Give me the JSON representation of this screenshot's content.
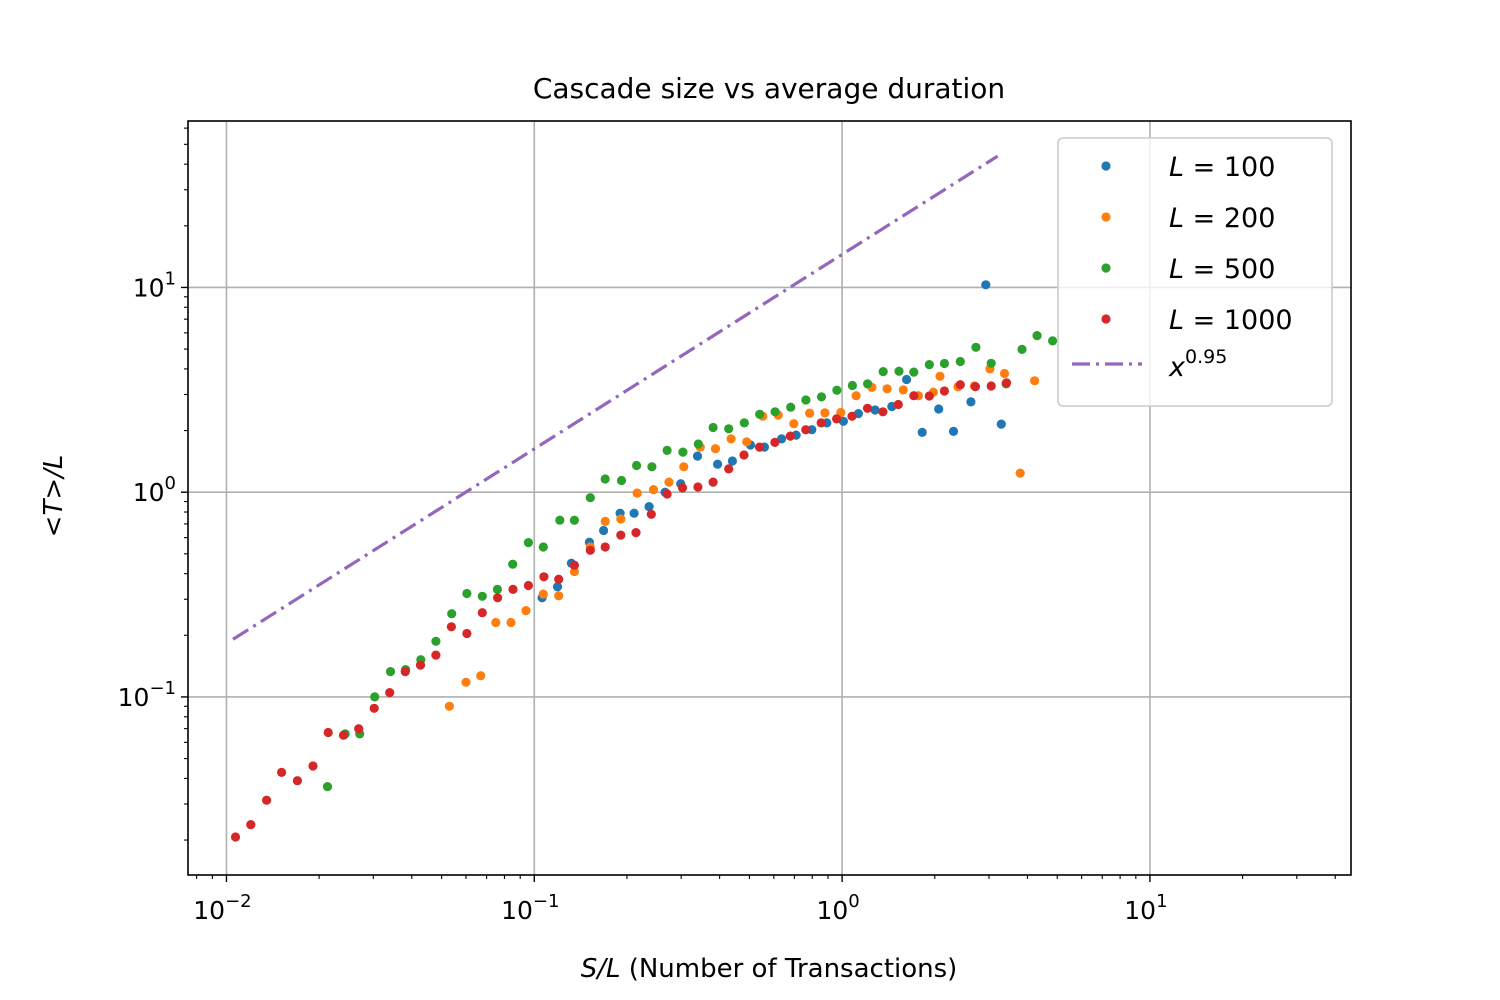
{
  "chart_data": {
    "type": "scatter",
    "title": "Cascade size vs average duration",
    "xlabel_var": "S/L",
    "xlabel_rest": " (Number of Transactions)",
    "ylabel": "<T>/L",
    "xscale": "log",
    "yscale": "log",
    "xlim": [
      0.0075,
      45
    ],
    "ylim": [
      0.0135,
      65
    ],
    "grid": true,
    "legend_position": "upper right",
    "x_ticks": [
      {
        "value": 0.01,
        "base": "10",
        "exp": "−2"
      },
      {
        "value": 0.1,
        "base": "10",
        "exp": "−1"
      },
      {
        "value": 1,
        "base": "10",
        "exp": "0"
      },
      {
        "value": 10,
        "base": "10",
        "exp": "1"
      }
    ],
    "y_ticks": [
      {
        "value": 0.1,
        "base": "10",
        "exp": "−1"
      },
      {
        "value": 1,
        "base": "10",
        "exp": "0"
      },
      {
        "value": 10,
        "base": "10",
        "exp": "1"
      }
    ],
    "series": [
      {
        "name": "L = 100",
        "label_var": "L",
        "label_num": " = 100",
        "color": "#1f77b4",
        "marker": "dot",
        "points": [
          [
            0.106,
            0.305
          ],
          [
            0.119,
            0.345
          ],
          [
            0.132,
            0.45
          ],
          [
            0.151,
            0.57
          ],
          [
            0.168,
            0.65
          ],
          [
            0.19,
            0.79
          ],
          [
            0.211,
            0.79
          ],
          [
            0.236,
            0.85
          ],
          [
            0.266,
            1.0
          ],
          [
            0.299,
            1.1
          ],
          [
            0.339,
            1.5
          ],
          [
            0.394,
            1.37
          ],
          [
            0.44,
            1.42
          ],
          [
            0.504,
            1.7
          ],
          [
            0.559,
            1.66
          ],
          [
            0.636,
            1.82
          ],
          [
            0.709,
            1.9
          ],
          [
            0.797,
            2.02
          ],
          [
            0.892,
            2.18
          ],
          [
            1.01,
            2.22
          ],
          [
            1.13,
            2.42
          ],
          [
            1.28,
            2.52
          ],
          [
            1.45,
            2.62
          ],
          [
            1.62,
            3.55
          ],
          [
            1.82,
            1.96
          ],
          [
            2.06,
            2.55
          ],
          [
            2.3,
            1.98
          ],
          [
            2.62,
            2.76
          ],
          [
            2.93,
            10.3
          ],
          [
            3.29,
            2.15
          ]
        ]
      },
      {
        "name": "L = 200",
        "label_var": "L",
        "label_num": " = 200",
        "color": "#ff7f0e",
        "marker": "dot",
        "points": [
          [
            0.053,
            0.09
          ],
          [
            0.06,
            0.118
          ],
          [
            0.067,
            0.127
          ],
          [
            0.075,
            0.231
          ],
          [
            0.084,
            0.231
          ],
          [
            0.094,
            0.264
          ],
          [
            0.107,
            0.318
          ],
          [
            0.12,
            0.312
          ],
          [
            0.135,
            0.41
          ],
          [
            0.152,
            0.54
          ],
          [
            0.17,
            0.72
          ],
          [
            0.191,
            0.74
          ],
          [
            0.216,
            0.99
          ],
          [
            0.244,
            1.03
          ],
          [
            0.274,
            1.12
          ],
          [
            0.306,
            1.33
          ],
          [
            0.346,
            1.66
          ],
          [
            0.388,
            1.63
          ],
          [
            0.436,
            1.82
          ],
          [
            0.49,
            1.76
          ],
          [
            0.552,
            2.35
          ],
          [
            0.62,
            2.38
          ],
          [
            0.697,
            2.16
          ],
          [
            0.784,
            2.43
          ],
          [
            0.879,
            2.44
          ],
          [
            0.99,
            2.45
          ],
          [
            1.11,
            2.96
          ],
          [
            1.25,
            3.25
          ],
          [
            1.4,
            3.2
          ],
          [
            1.58,
            3.16
          ],
          [
            1.77,
            2.96
          ],
          [
            1.98,
            3.08
          ],
          [
            2.08,
            3.68
          ],
          [
            2.38,
            3.27
          ],
          [
            2.69,
            3.3
          ],
          [
            3.02,
            4.0
          ],
          [
            3.37,
            3.8
          ],
          [
            3.79,
            1.24
          ],
          [
            4.22,
            3.5
          ]
        ]
      },
      {
        "name": "L = 500",
        "label_var": "L",
        "label_num": " = 500",
        "color": "#2ca02c",
        "marker": "dot",
        "points": [
          [
            0.0213,
            0.0365
          ],
          [
            0.0243,
            0.066
          ],
          [
            0.0271,
            0.066
          ],
          [
            0.0303,
            0.1
          ],
          [
            0.0341,
            0.133
          ],
          [
            0.0382,
            0.136
          ],
          [
            0.0428,
            0.152
          ],
          [
            0.0479,
            0.187
          ],
          [
            0.0539,
            0.255
          ],
          [
            0.0604,
            0.32
          ],
          [
            0.0678,
            0.31
          ],
          [
            0.0759,
            0.335
          ],
          [
            0.0851,
            0.445
          ],
          [
            0.0957,
            0.567
          ],
          [
            0.107,
            0.54
          ],
          [
            0.121,
            0.73
          ],
          [
            0.135,
            0.73
          ],
          [
            0.152,
            0.94
          ],
          [
            0.17,
            1.16
          ],
          [
            0.192,
            1.14
          ],
          [
            0.215,
            1.35
          ],
          [
            0.241,
            1.33
          ],
          [
            0.27,
            1.6
          ],
          [
            0.304,
            1.57
          ],
          [
            0.341,
            1.72
          ],
          [
            0.381,
            2.07
          ],
          [
            0.428,
            2.04
          ],
          [
            0.481,
            2.18
          ],
          [
            0.54,
            2.4
          ],
          [
            0.606,
            2.47
          ],
          [
            0.681,
            2.6
          ],
          [
            0.763,
            2.82
          ],
          [
            0.857,
            2.92
          ],
          [
            0.962,
            3.15
          ],
          [
            1.08,
            3.32
          ],
          [
            1.21,
            3.38
          ],
          [
            1.36,
            3.88
          ],
          [
            1.53,
            3.9
          ],
          [
            1.71,
            3.86
          ],
          [
            1.92,
            4.2
          ],
          [
            2.15,
            4.25
          ],
          [
            2.42,
            4.35
          ],
          [
            2.72,
            5.1
          ],
          [
            3.05,
            4.26
          ],
          [
            3.41,
            3.38
          ],
          [
            3.84,
            4.98
          ],
          [
            4.3,
            5.82
          ],
          [
            4.83,
            5.48
          ]
        ]
      },
      {
        "name": "L = 1000",
        "label_var": "L",
        "label_num": " = 1000",
        "color": "#d62728",
        "marker": "dot",
        "points": [
          [
            0.0107,
            0.0207
          ],
          [
            0.012,
            0.0238
          ],
          [
            0.0135,
            0.0313
          ],
          [
            0.0151,
            0.0428
          ],
          [
            0.017,
            0.039
          ],
          [
            0.0191,
            0.046
          ],
          [
            0.0214,
            0.067
          ],
          [
            0.024,
            0.065
          ],
          [
            0.0269,
            0.07
          ],
          [
            0.0302,
            0.088
          ],
          [
            0.0339,
            0.105
          ],
          [
            0.0381,
            0.133
          ],
          [
            0.0427,
            0.143
          ],
          [
            0.0479,
            0.16
          ],
          [
            0.0538,
            0.22
          ],
          [
            0.0604,
            0.204
          ],
          [
            0.0678,
            0.258
          ],
          [
            0.076,
            0.305
          ],
          [
            0.0853,
            0.335
          ],
          [
            0.0957,
            0.35
          ],
          [
            0.1075,
            0.386
          ],
          [
            0.12,
            0.376
          ],
          [
            0.135,
            0.44
          ],
          [
            0.152,
            0.52
          ],
          [
            0.17,
            0.54
          ],
          [
            0.191,
            0.617
          ],
          [
            0.214,
            0.635
          ],
          [
            0.24,
            0.78
          ],
          [
            0.27,
            0.98
          ],
          [
            0.303,
            1.05
          ],
          [
            0.34,
            1.06
          ],
          [
            0.381,
            1.12
          ],
          [
            0.428,
            1.3
          ],
          [
            0.48,
            1.52
          ],
          [
            0.539,
            1.66
          ],
          [
            0.605,
            1.75
          ],
          [
            0.679,
            1.88
          ],
          [
            0.762,
            2.02
          ],
          [
            0.855,
            2.18
          ],
          [
            0.96,
            2.28
          ],
          [
            1.077,
            2.35
          ],
          [
            1.209,
            2.57
          ],
          [
            1.357,
            2.47
          ],
          [
            1.523,
            2.68
          ],
          [
            1.71,
            2.96
          ],
          [
            1.92,
            2.95
          ],
          [
            2.15,
            3.12
          ],
          [
            2.42,
            3.35
          ],
          [
            2.71,
            3.28
          ],
          [
            3.05,
            3.3
          ],
          [
            3.42,
            3.42
          ]
        ]
      }
    ],
    "reference_line": {
      "name": "x^0.95",
      "label_base": "x",
      "label_exp": "0.95",
      "color": "#9467bd",
      "style": "dash-dot",
      "x_range": [
        0.0105,
        3.2
      ],
      "coefficient": 14.5,
      "exponent": 0.95
    }
  }
}
